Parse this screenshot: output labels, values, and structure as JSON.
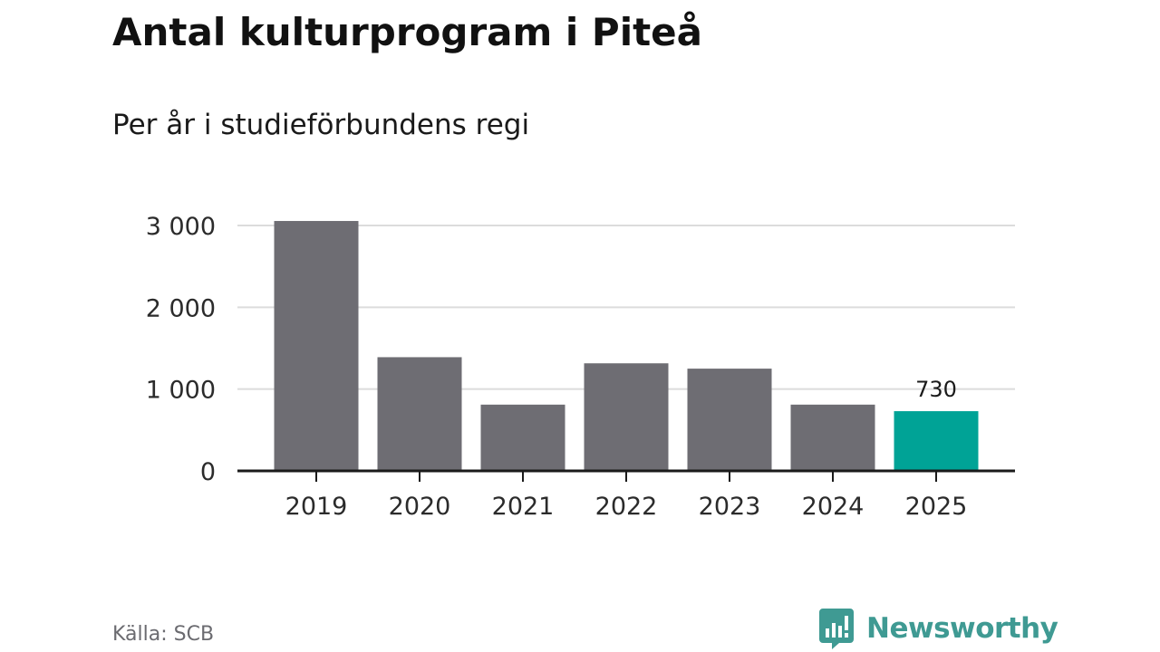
{
  "title": "Antal kulturprogram i Piteå",
  "subtitle": "Per år i studieförbundens regi",
  "source": "Källa: SCB",
  "brand": {
    "name": "Newsworthy",
    "logo_icon": "newsworthy-logo-icon"
  },
  "colors": {
    "bar": "#6e6d73",
    "highlight": "#00a396",
    "grid": "#dcdcdc",
    "axis": "#1a1a1a",
    "brand": "#3f9a93"
  },
  "chart_data": {
    "type": "bar",
    "title": "Antal kulturprogram i Piteå",
    "subtitle": "Per år i studieförbundens regi",
    "categories": [
      "2019",
      "2020",
      "2021",
      "2022",
      "2023",
      "2024",
      "2025"
    ],
    "values": [
      3055,
      1390,
      810,
      1315,
      1250,
      810,
      730
    ],
    "highlight_index": 6,
    "data_labels": [
      {
        "index": 6,
        "text": "730"
      }
    ],
    "y_ticks": [
      {
        "value": 0,
        "label": "0"
      },
      {
        "value": 1000,
        "label": "1 000"
      },
      {
        "value": 2000,
        "label": "2 000"
      },
      {
        "value": 3000,
        "label": "3 000"
      }
    ],
    "ylim": [
      0,
      3000
    ],
    "xlabel": "",
    "ylabel": "",
    "grid": true,
    "legend": "none"
  }
}
